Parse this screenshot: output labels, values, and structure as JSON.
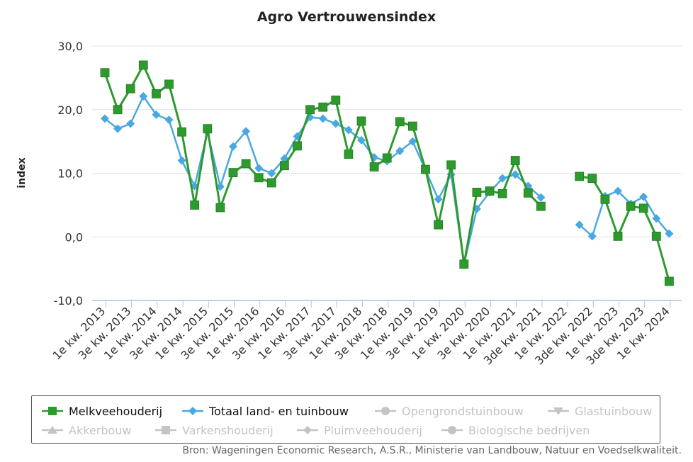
{
  "chart_data": {
    "type": "line",
    "title": "Agro Vertrouwensindex",
    "ylabel": "index",
    "xlabel": "",
    "ylim": [
      -10,
      30
    ],
    "yticks": [
      "30,0",
      "20,0",
      "10,0",
      "0,0",
      "-10,0"
    ],
    "grid": "horizontal",
    "legend_position": "bottom",
    "x_tick_labels": [
      "1e kw. 2013",
      "3e kw. 2013",
      "1e kw. 2014",
      "3e kw. 2014",
      "1e kw. 2015",
      "3e kw. 2015",
      "1e kw. 2016",
      "3e kw. 2016",
      "1e kw. 2017",
      "3e kw. 2017",
      "1e kw. 2018",
      "3e kw. 2018",
      "1e kw. 2019",
      "3e kw. 2019",
      "1e kw. 2020",
      "3e kw. 2020",
      "1e kw. 2021",
      "3de kw. 2021",
      "1e kw. 2022",
      "3de kw. 2022",
      "1e kw. 2023",
      "3de kw. 2023",
      "1e kw. 2024"
    ],
    "series": [
      {
        "name": "Melkveehouderij",
        "color": "#2e9a2e",
        "marker": "square",
        "values": [
          25.8,
          20.0,
          23.3,
          27.0,
          22.5,
          24.0,
          16.5,
          5.0,
          17.0,
          4.6,
          10.1,
          11.5,
          9.3,
          8.5,
          11.2,
          14.3,
          20.0,
          20.4,
          21.5,
          13.0,
          18.2,
          11.0,
          12.4,
          18.1,
          17.4,
          10.6,
          1.9,
          11.3,
          -4.3,
          7.0,
          7.2,
          6.8,
          12.0,
          6.9,
          4.8,
          null,
          null,
          9.5,
          9.2,
          5.9,
          0.1,
          4.8,
          4.5,
          0.1,
          -7.0
        ]
      },
      {
        "name": "Totaal land- en tuinbouw",
        "color": "#4aa8e0",
        "marker": "diamond",
        "values": [
          18.6,
          17.0,
          17.8,
          22.1,
          19.2,
          18.4,
          12.0,
          8.0,
          16.5,
          7.9,
          14.2,
          16.6,
          10.8,
          10.0,
          12.3,
          15.8,
          18.8,
          18.6,
          17.8,
          16.8,
          15.2,
          12.5,
          11.9,
          13.5,
          15.0,
          10.5,
          5.9,
          9.8,
          -4.3,
          4.4,
          7.0,
          9.2,
          9.8,
          8.0,
          6.2,
          null,
          null,
          1.9,
          0.1,
          6.4,
          7.2,
          5.2,
          6.3,
          2.9,
          0.5
        ]
      }
    ]
  },
  "legend": {
    "items": [
      {
        "label": "Melkveehouderij",
        "state": "active",
        "color": "#2e9a2e",
        "icon": "square-line-icon"
      },
      {
        "label": "Totaal land- en tuinbouw",
        "state": "active",
        "color": "#4aa8e0",
        "icon": "diamond-line-icon"
      },
      {
        "label": "Opengrondstuinbouw",
        "state": "inactive",
        "color": "#c4c4c4",
        "icon": "circle-line-icon"
      },
      {
        "label": "Glastuinbouw",
        "state": "inactive",
        "color": "#c4c4c4",
        "icon": "triangle-down-line-icon"
      },
      {
        "label": "Akkerbouw",
        "state": "inactive",
        "color": "#c4c4c4",
        "icon": "triangle-line-icon"
      },
      {
        "label": "Varkenshouderij",
        "state": "inactive",
        "color": "#c4c4c4",
        "icon": "square-line-icon"
      },
      {
        "label": "Pluimveehouderij",
        "state": "inactive",
        "color": "#c4c4c4",
        "icon": "diamond-line-icon"
      },
      {
        "label": "Biologische bedrijven",
        "state": "inactive",
        "color": "#c4c4c4",
        "icon": "circle-line-icon"
      }
    ]
  },
  "source": "Bron: Wageningen Economic Research, A.S.R., Ministerie van Landbouw, Natuur en Voedselkwaliteit."
}
